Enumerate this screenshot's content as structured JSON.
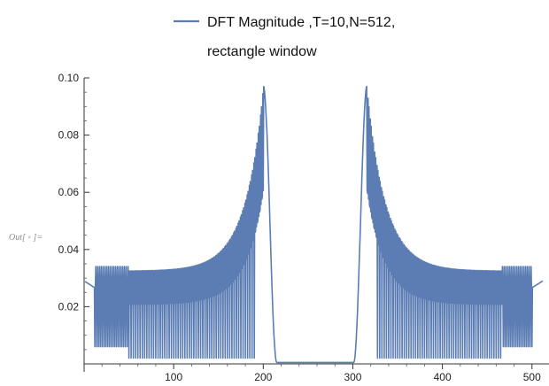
{
  "cell_label": "Out[ ◦ ]=",
  "legend": {
    "lines": [
      "DFT Magnitude ,T=10,N=512,",
      "rectangle window"
    ],
    "color": "#5b7db4"
  },
  "chart_data": {
    "type": "line",
    "title": "",
    "xlabel": "",
    "ylabel": "",
    "xlim": [
      0,
      520
    ],
    "ylim": [
      0,
      0.1
    ],
    "x_ticks": [
      100,
      200,
      300,
      400,
      500
    ],
    "y_ticks": [
      0.02,
      0.04,
      0.06,
      0.08,
      0.1
    ],
    "x_tick_labels": [
      "100",
      "200",
      "300",
      "400",
      "500"
    ],
    "y_tick_labels": [
      "0.02",
      "0.04",
      "0.06",
      "0.08",
      "0.10"
    ],
    "grid": false,
    "legend_position": "top",
    "series": [
      {
        "name": "DFT Magnitude ,T=10,N=512, rectangle window",
        "color": "#5b7db4",
        "x_start": 1,
        "x_end": 512,
        "points": 512,
        "envelope_description_values": {
          "edge_value": 0.029,
          "first_sidelobe_peak": 0.04,
          "min_sidelobe_peak": 0.036,
          "main_peak_value": 0.097,
          "main_peaks_x": [
            200,
            316
          ],
          "near_zero_band_x": [
            215,
            305
          ],
          "near_zero_value": 0.0005
        }
      }
    ]
  }
}
